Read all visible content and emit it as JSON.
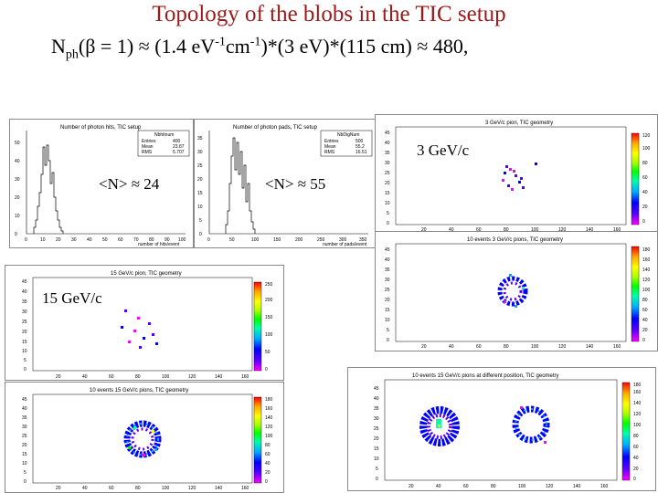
{
  "slide": {
    "title": "Topology of the blobs in the  TIC setup",
    "formula": {
      "n": "N",
      "n_sub": "ph",
      "open": "(β = 1) ≈ (1.4 eV",
      "sup1": "-1",
      "mid": "cm",
      "sup2": "-1",
      "rest": ")*(3 eV)*(115 cm) ≈ 480,"
    }
  },
  "panels": {
    "photon_hits": {
      "plot_title": "Number of photon hits, TIC setup",
      "stats_name": "Nbhitnum",
      "stats": [
        {
          "label": "Entries",
          "value": "400"
        },
        {
          "label": "Mean",
          "value": "23.87"
        },
        {
          "label": "RMS",
          "value": "5.707"
        }
      ],
      "xlabel": "number of hits/event",
      "annotation": "<N> ≈ 24",
      "x_ticks": [
        "0",
        "10",
        "20",
        "30",
        "40",
        "50",
        "60",
        "70",
        "80",
        "90",
        "100"
      ],
      "y_ticks": [
        "0",
        "10",
        "20",
        "30",
        "40",
        "50"
      ]
    },
    "photon_pads": {
      "plot_title": "Number of photon pads, TIC setup",
      "stats_name": "NbDigNum",
      "stats": [
        {
          "label": "Entries",
          "value": "500"
        },
        {
          "label": "Mean",
          "value": "55.2"
        },
        {
          "label": "RMS",
          "value": "16.51"
        }
      ],
      "xlabel": "number of pads/event",
      "annotation": "<N> ≈ 55",
      "x_ticks": [
        "0",
        "50",
        "100",
        "150",
        "200",
        "250",
        "300",
        "350"
      ],
      "y_ticks": [
        "0",
        "5",
        "10",
        "15",
        "20",
        "25",
        "30",
        "35"
      ]
    },
    "gev3_single": {
      "plot_title": "3 GeV/c pion, TIC geometry",
      "annotation": "3 GeV/c",
      "x_ticks": [
        "20",
        "40",
        "60",
        "80",
        "100",
        "120",
        "140",
        "160"
      ],
      "y_ticks": [
        "0",
        "5",
        "10",
        "15",
        "20",
        "25",
        "30",
        "35",
        "40",
        "45"
      ],
      "palette_ticks": [
        "0",
        "20",
        "40",
        "60",
        "80",
        "100",
        "120"
      ]
    },
    "gev3_events": {
      "plot_title": "10 events 3 GeV/c pions, TIC geometry",
      "x_ticks": [
        "20",
        "40",
        "60",
        "80",
        "100",
        "120",
        "140",
        "160"
      ],
      "y_ticks": [
        "0",
        "5",
        "10",
        "15",
        "20",
        "25",
        "30",
        "35",
        "40",
        "45"
      ],
      "palette_ticks": [
        "0",
        "20",
        "40",
        "60",
        "80",
        "100",
        "120",
        "140",
        "160",
        "180"
      ]
    },
    "gev15_single": {
      "plot_title": "15 GeV/c pion, TIC geometry",
      "annotation": "15 GeV/c",
      "x_ticks": [
        "20",
        "40",
        "60",
        "80",
        "100",
        "120",
        "140",
        "160"
      ],
      "y_ticks": [
        "0",
        "5",
        "10",
        "15",
        "20",
        "25",
        "30",
        "35",
        "40",
        "45"
      ],
      "palette_ticks": [
        "0",
        "50",
        "100",
        "150",
        "200",
        "250"
      ]
    },
    "gev15_events": {
      "plot_title": "10 events 15 GeV/c pions, TIC geometry",
      "x_ticks": [
        "20",
        "40",
        "60",
        "80",
        "100",
        "120",
        "140",
        "160"
      ],
      "y_ticks": [
        "0",
        "5",
        "10",
        "15",
        "20",
        "25",
        "30",
        "35",
        "40",
        "45"
      ],
      "palette_ticks": [
        "0",
        "20",
        "40",
        "60",
        "80",
        "100",
        "120",
        "140",
        "160",
        "180"
      ]
    },
    "gev15_positions": {
      "plot_title": "10 events 15 GeV/c pions at different position, TIC geometry",
      "x_ticks": [
        "20",
        "40",
        "60",
        "80",
        "100",
        "120",
        "140",
        "160"
      ],
      "y_ticks": [
        "0",
        "5",
        "10",
        "15",
        "20",
        "25",
        "30",
        "35",
        "40",
        "45"
      ],
      "palette_ticks": [
        "0",
        "20",
        "40",
        "60",
        "80",
        "100",
        "120",
        "140",
        "160",
        "180"
      ]
    }
  },
  "colors": {
    "title": "#9a1a1a",
    "hist_line": "#000000",
    "palette": [
      "#ff00ff",
      "#5500ff",
      "#0000ff",
      "#00aaff",
      "#00ffaa",
      "#00ff00",
      "#aaff00",
      "#ffff00",
      "#ffaa00",
      "#ff0000"
    ]
  }
}
